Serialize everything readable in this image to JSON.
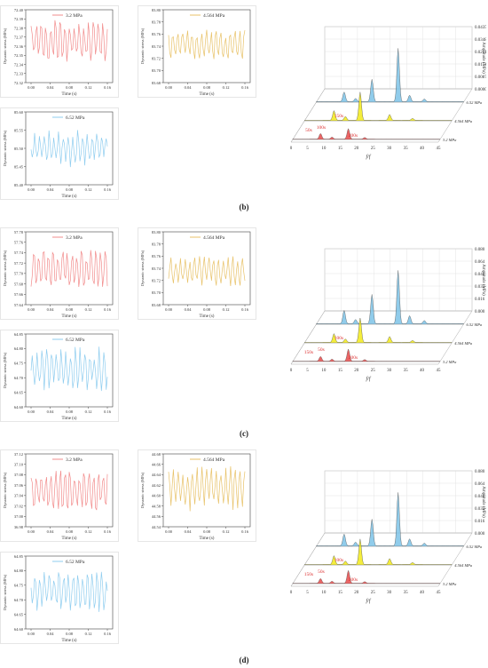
{
  "colors": {
    "s1": "#f28c8c",
    "s2": "#e8c268",
    "s3": "#8fcdef",
    "fill1": "#e64a4a",
    "fill2": "#f2ea1a",
    "fill3": "#7dc3e8"
  },
  "panels": [
    {
      "label": "(b)",
      "charts": [
        {
          "type": "line",
          "legend": "3.2 MPa",
          "ylabel": "Dynamic stress (MPa)",
          "xlabel": "Time (s)",
          "yticks": [
            "72.40",
            "72.39",
            "72.38",
            "72.37",
            "72.36",
            "72.35",
            "72.34",
            "72.33",
            "72.32"
          ],
          "ylim": [
            72.32,
            72.4
          ],
          "xticks": [
            "0.00",
            "0.04",
            "0.08",
            "0.12",
            "0.16"
          ],
          "xlim": [
            0,
            0.16
          ],
          "series": {
            "mean": 72.365,
            "amp": 0.026,
            "color": "s1",
            "seed": 1
          }
        },
        {
          "type": "line",
          "legend": "4.564 MPa",
          "ylabel": "Dynamic stress (MPa)",
          "xlabel": "Time (s)",
          "yticks": [
            "83.80",
            "83.78",
            "83.76",
            "83.74",
            "83.72",
            "83.70",
            "83.68"
          ],
          "ylim": [
            83.68,
            83.8
          ],
          "xticks": [
            "0.00",
            "0.04",
            "0.08",
            "0.12",
            "0.16"
          ],
          "xlim": [
            0,
            0.16
          ],
          "series": {
            "mean": 83.743,
            "amp": 0.025,
            "color": "s2",
            "seed": 2
          }
        },
        {
          "type": "line",
          "legend": "6.52 MPa",
          "ylabel": "Dynamic stress (MPa)",
          "xlabel": "Time (s)",
          "yticks": [
            "85.60",
            "85.55",
            "85.50",
            "85.45",
            "85.40"
          ],
          "ylim": [
            85.4,
            85.6
          ],
          "xticks": [
            "0.00",
            "0.04",
            "0.08",
            "0.12",
            "0.16"
          ],
          "xlim": [
            0,
            0.16
          ],
          "series": {
            "mean": 85.5,
            "amp": 0.05,
            "color": "s3",
            "seed": 3
          }
        }
      ],
      "spectrum": {
        "type": "area",
        "zlabel": "Amplitude (MPa)",
        "xlabel": "f/f",
        "zticks": [
          "0.0435",
          "0.0348",
          "0.0261",
          "0.0174",
          "0.0087",
          "0.0000"
        ],
        "xticks": [
          "0",
          "5",
          "10",
          "15",
          "20",
          "25",
          "30",
          "35",
          "40",
          "45"
        ],
        "series_labels": [
          "6.52 MPa",
          "4.564 MPa",
          "3.2 MPa"
        ],
        "peaks": [
          [
            [
              8.5,
              0.18
            ],
            [
              12,
              0.06
            ],
            [
              17,
              0.42
            ],
            [
              25,
              1.0
            ],
            [
              28.5,
              0.12
            ],
            [
              33,
              0.05
            ]
          ],
          [
            [
              9,
              0.2
            ],
            [
              12.5,
              0.08
            ],
            [
              17,
              0.58
            ],
            [
              26,
              0.12
            ],
            [
              33,
              0.04
            ]
          ],
          [
            [
              8.5,
              0.14
            ],
            [
              12,
              0.05
            ],
            [
              17,
              0.26
            ],
            [
              22,
              0.04
            ]
          ]
        ],
        "annotations": [
          "50s",
          "100s",
          "150s",
          "200s"
        ]
      }
    },
    {
      "label": "(c)",
      "charts": [
        {
          "type": "line",
          "legend": "3.2 MPa",
          "ylabel": "Dynamic stress (MPa)",
          "xlabel": "Time (s)",
          "yticks": [
            "57.78",
            "57.76",
            "57.74",
            "57.72",
            "57.70",
            "57.68",
            "57.66",
            "57.64"
          ],
          "ylim": [
            57.64,
            57.78
          ],
          "xticks": [
            "0.00",
            "0.04",
            "0.08",
            "0.12",
            "0.16"
          ],
          "xlim": [
            0,
            0.16
          ],
          "series": {
            "mean": 57.71,
            "amp": 0.042,
            "color": "s1",
            "seed": 4
          }
        },
        {
          "type": "line",
          "legend": "4.564 MPa",
          "ylabel": "Dynamic stress (MPa)",
          "xlabel": "Time (s)",
          "yticks": [
            "83.80",
            "83.78",
            "83.76",
            "83.74",
            "83.72",
            "83.70",
            "83.68"
          ],
          "ylim": [
            83.68,
            83.8
          ],
          "xticks": [
            "0.00",
            "0.04",
            "0.08",
            "0.12",
            "0.16"
          ],
          "xlim": [
            0,
            0.16
          ],
          "series": {
            "mean": 83.735,
            "amp": 0.025,
            "color": "s2",
            "seed": 5
          }
        },
        {
          "type": "line",
          "legend": "6.52 MPa",
          "ylabel": "Dynamic stress (MPa)",
          "xlabel": "Time (s)",
          "yticks": [
            "64.85",
            "64.80",
            "64.75",
            "64.70",
            "64.65",
            "64.60"
          ],
          "ylim": [
            64.6,
            64.85
          ],
          "xticks": [
            "0.00",
            "0.04",
            "0.08",
            "0.12",
            "0.16"
          ],
          "xlim": [
            0,
            0.16
          ],
          "series": {
            "mean": 64.73,
            "amp": 0.075,
            "color": "s3",
            "seed": 6
          }
        }
      ],
      "spectrum": {
        "type": "area",
        "zlabel": "Amplitude (MPa)",
        "xlabel": "f/f",
        "zticks": [
          "0.080",
          "0.064",
          "0.048",
          "0.032",
          "0.016",
          "0.000"
        ],
        "xticks": [
          "0",
          "5",
          "10",
          "15",
          "20",
          "25",
          "30",
          "35",
          "40",
          "45"
        ],
        "series_labels": [
          "6.52 MPa",
          "4.564 MPa",
          "3.2 MPa"
        ],
        "peaks": [
          [
            [
              8.5,
              0.25
            ],
            [
              12,
              0.08
            ],
            [
              17,
              0.55
            ],
            [
              25,
              1.0
            ],
            [
              28.5,
              0.15
            ],
            [
              33,
              0.06
            ]
          ],
          [
            [
              9,
              0.18
            ],
            [
              12.5,
              0.07
            ],
            [
              17,
              0.5
            ],
            [
              26,
              0.12
            ],
            [
              33,
              0.04
            ]
          ],
          [
            [
              8.5,
              0.12
            ],
            [
              12,
              0.05
            ],
            [
              17,
              0.3
            ],
            [
              22,
              0.04
            ]
          ]
        ],
        "annotations": [
          "150s",
          "50s",
          "100s",
          "200s"
        ]
      }
    },
    {
      "label": "(d)",
      "charts": [
        {
          "type": "line",
          "legend": "3.2 MPa",
          "ylabel": "Dynamic stress (MPa)",
          "xlabel": "Time (s)",
          "yticks": [
            "37.12",
            "37.10",
            "37.08",
            "37.06",
            "37.04",
            "37.02",
            "37.00",
            "36.98"
          ],
          "ylim": [
            36.98,
            37.12
          ],
          "xticks": [
            "0.00",
            "0.04",
            "0.08",
            "0.12",
            "0.16"
          ],
          "xlim": [
            0,
            0.16
          ],
          "series": {
            "mean": 37.05,
            "amp": 0.045,
            "color": "s1",
            "seed": 7
          }
        },
        {
          "type": "line",
          "legend": "4.564 MPa",
          "ylabel": "Dynamic stress (MPa)",
          "xlabel": "Time (s)",
          "yticks": [
            "44.68",
            "44.66",
            "44.64",
            "44.62",
            "44.60",
            "44.58",
            "44.56",
            "44.54"
          ],
          "ylim": [
            44.54,
            44.68
          ],
          "xticks": [
            "0.00",
            "0.04",
            "0.08",
            "0.12",
            "0.16"
          ],
          "xlim": [
            0,
            0.16
          ],
          "series": {
            "mean": 44.615,
            "amp": 0.045,
            "color": "s2",
            "seed": 8
          }
        },
        {
          "type": "line",
          "legend": "6.52 MPa",
          "ylabel": "Dynamic stress (MPa)",
          "xlabel": "Time (s)",
          "yticks": [
            "64.85",
            "64.80",
            "64.75",
            "64.70",
            "64.65",
            "64.60"
          ],
          "ylim": [
            64.6,
            64.85
          ],
          "xticks": [
            "0.00",
            "0.04",
            "0.08",
            "0.12",
            "0.16"
          ],
          "xlim": [
            0,
            0.16
          ],
          "series": {
            "mean": 64.73,
            "amp": 0.075,
            "color": "s3",
            "seed": 9
          }
        }
      ],
      "spectrum": {
        "type": "area",
        "zlabel": "Amplitude (MPa)",
        "xlabel": "f/f",
        "zticks": [
          "0.080",
          "0.064",
          "0.048",
          "0.032",
          "0.016",
          "0.000"
        ],
        "xticks": [
          "0",
          "5",
          "10",
          "15",
          "20",
          "25",
          "30",
          "35",
          "40",
          "45"
        ],
        "series_labels": [
          "6.52 MPa",
          "4.564 MPa",
          "3.2 MPa"
        ],
        "peaks": [
          [
            [
              8.5,
              0.22
            ],
            [
              12,
              0.07
            ],
            [
              17,
              0.5
            ],
            [
              25,
              1.0
            ],
            [
              28.5,
              0.13
            ],
            [
              33,
              0.05
            ]
          ],
          [
            [
              9,
              0.18
            ],
            [
              12.5,
              0.07
            ],
            [
              17,
              0.52
            ],
            [
              26,
              0.12
            ],
            [
              33,
              0.04
            ]
          ],
          [
            [
              8.5,
              0.12
            ],
            [
              12,
              0.05
            ],
            [
              17,
              0.32
            ],
            [
              22,
              0.04
            ]
          ]
        ],
        "annotations": [
          "150s",
          "50s",
          "100s",
          "200s"
        ]
      }
    }
  ]
}
